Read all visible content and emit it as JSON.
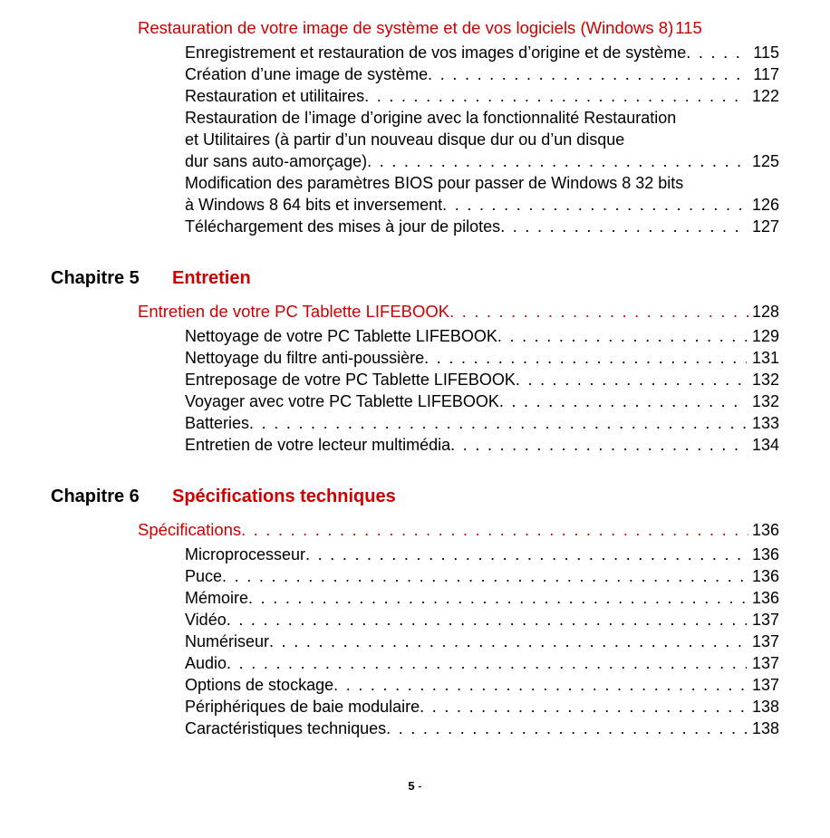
{
  "colors": {
    "accent": "#cc0000",
    "text": "#000000",
    "background": "#ffffff"
  },
  "typography": {
    "chapter_fontsize_pt": 15,
    "section_fontsize_pt": 14,
    "entry_fontsize_pt": 13,
    "font_family": "sans-serif"
  },
  "top_section": {
    "title": "Restauration de votre image de système et de vos logiciels (Windows 8)",
    "page": "115",
    "entries": [
      {
        "title": "Enregistrement et restauration de vos images d’origine et de système",
        "page": "115"
      },
      {
        "title": "Création d’une image de système",
        "page": "117"
      },
      {
        "title": "Restauration et utilitaires",
        "page": "122"
      },
      {
        "multiline": true,
        "lines": [
          "Restauration de l’image d’origine avec la fonctionnalité Restauration",
          "et Utilitaires (à partir d’un nouveau disque dur ou d’un disque"
        ],
        "last_line": "dur sans auto-amorçage)",
        "page": "125"
      },
      {
        "multiline": true,
        "lines": [
          "Modification des paramètres BIOS pour passer de Windows 8 32 bits"
        ],
        "last_line": "à Windows 8 64 bits et inversement",
        "page": "126"
      },
      {
        "title": "Téléchargement des mises à jour de pilotes",
        "page": "127"
      }
    ]
  },
  "chapters": [
    {
      "label": "Chapitre 5",
      "title": "Entretien",
      "section": {
        "title": "Entretien de votre PC Tablette LIFEBOOK",
        "page": "128",
        "entries": [
          {
            "title": "Nettoyage de votre PC Tablette LIFEBOOK",
            "page": "129"
          },
          {
            "title": "Nettoyage du filtre anti-poussière",
            "page": "131"
          },
          {
            "title": "Entreposage de votre PC Tablette LIFEBOOK",
            "page": "132"
          },
          {
            "title": "Voyager avec votre PC Tablette LIFEBOOK",
            "page": "132"
          },
          {
            "title": "Batteries",
            "page": "133"
          },
          {
            "title": "Entretien de votre lecteur multimédia",
            "page": "134"
          }
        ]
      }
    },
    {
      "label": "Chapitre 6",
      "title": "Spécifications techniques",
      "section": {
        "title": "Spécifications",
        "page": "136",
        "entries": [
          {
            "title": "Microprocesseur",
            "page": "136"
          },
          {
            "title": "Puce",
            "page": "136"
          },
          {
            "title": "Mémoire",
            "page": "136"
          },
          {
            "title": "Vidéo",
            "page": "137"
          },
          {
            "title": "Numériseur",
            "page": "137"
          },
          {
            "title": "Audio",
            "page": "137"
          },
          {
            "title": "Options de stockage",
            "page": "137"
          },
          {
            "title": "Périphériques de baie modulaire",
            "page": "138"
          },
          {
            "title": "Caractéristiques techniques",
            "page": "138"
          }
        ]
      }
    }
  ],
  "footer": {
    "page_number": "5",
    "suffix": " -"
  }
}
